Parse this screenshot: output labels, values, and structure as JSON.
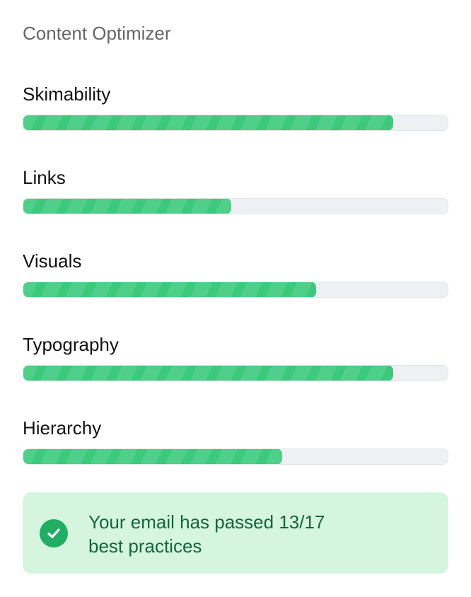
{
  "title": "Content Optimizer",
  "metrics": [
    {
      "label": "Skimability",
      "progress": 0.87
    },
    {
      "label": "Links",
      "progress": 0.49
    },
    {
      "label": "Visuals",
      "progress": 0.69
    },
    {
      "label": "Typography",
      "progress": 0.87
    },
    {
      "label": "Hierarchy",
      "progress": 0.61
    }
  ],
  "colors": {
    "fill": "#3cc97c",
    "track": "#eef0f3",
    "callout_bg": "#d5f5df",
    "callout_text": "#13663c",
    "check": "#21ad62"
  },
  "callout": {
    "icon": "check-circle-icon",
    "line1": "Your email has passed 13/17",
    "line2": "best practices"
  }
}
